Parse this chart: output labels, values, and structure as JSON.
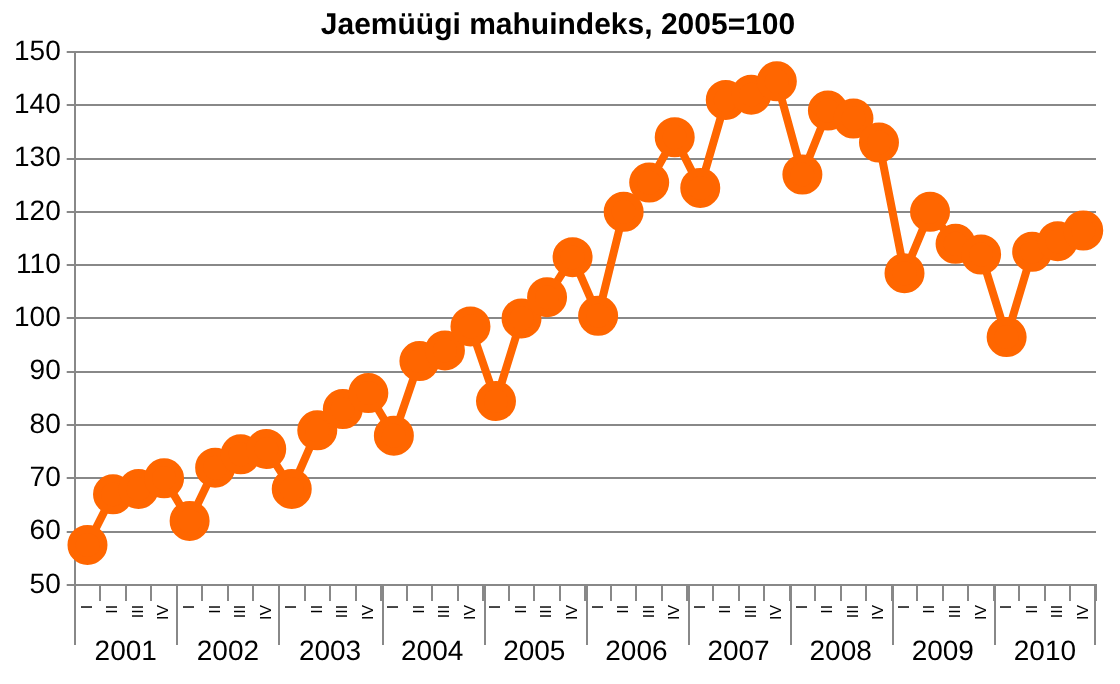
{
  "chart_data": {
    "type": "line",
    "title": "Jaemüügi mahuindeks, 2005=100",
    "categories": [
      "I",
      "II",
      "III",
      "IV",
      "I",
      "II",
      "III",
      "IV",
      "I",
      "II",
      "III",
      "IV",
      "I",
      "II",
      "III",
      "IV",
      "I",
      "II",
      "III",
      "IV",
      "I",
      "II",
      "III",
      "IV",
      "I",
      "II",
      "III",
      "IV",
      "I",
      "II",
      "III",
      "IV",
      "I",
      "II",
      "III",
      "IV",
      "I",
      "II",
      "III",
      "IV"
    ],
    "series": [
      {
        "color": "#ff6600",
        "values": [
          57.5,
          67,
          68,
          70,
          62,
          72,
          74.5,
          75.5,
          68,
          79,
          83,
          86,
          78,
          92,
          94,
          98.5,
          84.5,
          100,
          104,
          111.5,
          100.5,
          120,
          125.5,
          134,
          124.5,
          141,
          142,
          144.5,
          127,
          139,
          137.5,
          133,
          108.5,
          120,
          114,
          112,
          96.5,
          112.5,
          114.5,
          116.5
        ]
      }
    ],
    "ylim": [
      50,
      150
    ],
    "yticks": [
      50,
      60,
      70,
      80,
      90,
      100,
      110,
      120,
      130,
      140,
      150
    ],
    "grid": "y",
    "legend": false,
    "marker": "circle",
    "line_style": "solid",
    "annotations": [
      "2001",
      "2002",
      "2003",
      "2004",
      "2005",
      "2006",
      "2007",
      "2008",
      "2009",
      "2010"
    ]
  }
}
